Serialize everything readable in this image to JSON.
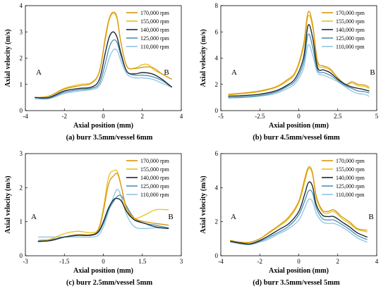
{
  "legend_labels": [
    "170,000 rpm",
    "155,000 rpm",
    "140,000 rpm",
    "125,000 rpm",
    "110,000 rpm"
  ],
  "colors": {
    "s170": "#d9960f",
    "s155": "#e8c21a",
    "s140": "#1b2b38",
    "s125": "#4e8fb4",
    "s110": "#8ec4e4"
  },
  "chart_data": [
    {
      "type": "line",
      "caption": "(a) burr 3.5mm/vessel 6mm",
      "xlabel": "Axial position (mm)",
      "ylabel": "Axial velocity (m/s)",
      "xlim": [
        -4,
        4
      ],
      "ylim": [
        0,
        4
      ],
      "xticks": [
        "-4",
        "-2",
        "0",
        "2",
        "4"
      ],
      "yticks": [
        "0",
        "1",
        "2",
        "3",
        "4"
      ],
      "annotations": {
        "left": "A",
        "right": "B"
      },
      "series": [
        {
          "name": "170,000 rpm",
          "x": [
            -3.5,
            -2.8,
            -2,
            -1.2,
            -0.6,
            -0.2,
            0.1,
            0.3,
            0.5,
            0.7,
            0.9,
            1.2,
            1.6,
            2.0,
            2.5,
            3.0,
            3.5
          ],
          "y": [
            0.5,
            0.55,
            0.82,
            0.95,
            1.05,
            1.5,
            2.8,
            3.5,
            3.75,
            3.55,
            2.6,
            1.7,
            1.6,
            1.65,
            1.65,
            1.4,
            1.2
          ]
        },
        {
          "name": "155,000 rpm",
          "x": [
            -3.5,
            -2.8,
            -2,
            -1.2,
            -0.6,
            -0.2,
            0.1,
            0.3,
            0.5,
            0.7,
            0.9,
            1.2,
            1.6,
            2.0,
            2.3,
            2.6,
            3.0,
            3.5
          ],
          "y": [
            0.5,
            0.55,
            0.85,
            1.0,
            1.08,
            1.5,
            2.7,
            3.45,
            3.7,
            3.5,
            2.6,
            1.7,
            1.62,
            1.75,
            1.75,
            1.55,
            1.4,
            1.2
          ]
        },
        {
          "name": "140,000 rpm",
          "x": [
            -3.5,
            -2.8,
            -2,
            -1.2,
            -0.6,
            -0.2,
            0.1,
            0.3,
            0.5,
            0.7,
            0.9,
            1.2,
            1.6,
            2.0,
            2.5,
            3.0,
            3.5
          ],
          "y": [
            0.5,
            0.5,
            0.75,
            0.85,
            0.9,
            1.2,
            2.2,
            2.8,
            3.0,
            2.8,
            2.2,
            1.5,
            1.4,
            1.45,
            1.4,
            1.2,
            0.9
          ]
        },
        {
          "name": "125,000 rpm",
          "x": [
            -3.5,
            -2.8,
            -2,
            -1.2,
            -0.6,
            -0.2,
            0.1,
            0.3,
            0.5,
            0.7,
            0.9,
            1.2,
            1.6,
            2.0,
            2.5,
            3.0,
            3.5
          ],
          "y": [
            0.5,
            0.48,
            0.7,
            0.8,
            0.85,
            1.05,
            1.8,
            2.4,
            2.68,
            2.6,
            2.1,
            1.5,
            1.35,
            1.35,
            1.3,
            1.15,
            0.9
          ]
        },
        {
          "name": "110,000 rpm",
          "x": [
            -3.5,
            -2.8,
            -2,
            -1.2,
            -0.6,
            -0.2,
            0.1,
            0.3,
            0.5,
            0.7,
            0.9,
            1.2,
            1.6,
            2.0,
            2.5,
            3.0,
            3.5
          ],
          "y": [
            0.45,
            0.45,
            0.65,
            0.75,
            0.8,
            0.95,
            1.5,
            2.0,
            2.3,
            2.3,
            1.9,
            1.4,
            1.25,
            1.25,
            1.2,
            1.05,
            0.9
          ]
        }
      ]
    },
    {
      "type": "line",
      "caption": "(b) burr 4.5mm/vessel 6mm",
      "xlabel": "Axial position (mm)",
      "ylabel": "Axial velocity (m/s)",
      "xlim": [
        -5,
        5
      ],
      "ylim": [
        0,
        8
      ],
      "xticks": [
        "-5",
        "-2.5",
        "0",
        "2.5",
        "5"
      ],
      "yticks": [
        "0",
        "2",
        "4",
        "6",
        "8"
      ],
      "annotations": {
        "left": "A",
        "right": "B"
      },
      "series": [
        {
          "name": "170,000 rpm",
          "x": [
            -4.5,
            -3.5,
            -2.5,
            -1.5,
            -0.8,
            -0.2,
            0.3,
            0.6,
            0.9,
            1.2,
            1.6,
            2.0,
            2.5,
            3.0,
            3.4,
            3.8,
            4.2,
            4.5
          ],
          "y": [
            1.25,
            1.35,
            1.5,
            1.8,
            2.3,
            3.0,
            5.0,
            7.5,
            6.5,
            3.8,
            3.4,
            3.2,
            2.5,
            2.0,
            2.2,
            2.0,
            1.95,
            1.8
          ]
        },
        {
          "name": "155,000 rpm",
          "x": [
            -4.5,
            -3.5,
            -2.5,
            -1.5,
            -0.8,
            -0.2,
            0.3,
            0.6,
            0.9,
            1.2,
            1.6,
            2.0,
            2.5,
            3.0,
            3.4,
            3.8,
            4.2,
            4.5
          ],
          "y": [
            1.2,
            1.3,
            1.45,
            1.75,
            2.2,
            2.9,
            4.8,
            7.2,
            6.3,
            3.6,
            3.3,
            3.1,
            2.5,
            2.0,
            2.1,
            1.9,
            1.85,
            1.7
          ]
        },
        {
          "name": "140,000 rpm",
          "x": [
            -4.5,
            -3.5,
            -2.5,
            -1.5,
            -0.8,
            -0.2,
            0.3,
            0.6,
            0.9,
            1.2,
            1.6,
            2.0,
            2.5,
            3.0,
            3.4,
            3.8,
            4.2,
            4.5
          ],
          "y": [
            1.1,
            1.15,
            1.25,
            1.5,
            1.9,
            2.5,
            4.0,
            6.5,
            5.5,
            3.3,
            3.1,
            2.9,
            2.4,
            2.0,
            1.8,
            1.7,
            1.6,
            1.5
          ]
        },
        {
          "name": "125,000 rpm",
          "x": [
            -4.5,
            -3.5,
            -2.5,
            -1.5,
            -0.8,
            -0.2,
            0.3,
            0.6,
            0.9,
            1.2,
            1.6,
            2.0,
            2.5,
            3.0,
            3.4,
            3.8,
            4.2,
            4.5
          ],
          "y": [
            1.0,
            1.05,
            1.15,
            1.4,
            1.8,
            2.3,
            3.6,
            5.8,
            4.8,
            3.1,
            2.9,
            2.7,
            2.3,
            1.9,
            1.7,
            1.5,
            1.45,
            1.35
          ]
        },
        {
          "name": "110,000 rpm",
          "x": [
            -4.5,
            -3.5,
            -2.5,
            -1.5,
            -0.8,
            -0.2,
            0.3,
            0.6,
            0.9,
            1.2,
            1.6,
            2.0,
            2.5,
            3.0,
            3.4,
            3.8,
            4.2,
            4.5
          ],
          "y": [
            0.95,
            1.0,
            1.1,
            1.3,
            1.65,
            2.1,
            3.2,
            5.0,
            4.2,
            2.9,
            2.7,
            2.5,
            2.2,
            1.8,
            1.5,
            1.3,
            1.25,
            1.1
          ]
        }
      ]
    },
    {
      "type": "line",
      "caption": "(c) burr 2.5mm/vessel 5mm",
      "xlabel": "Axial position (mm)",
      "ylabel": "Axial velocity (m/s)",
      "xlim": [
        -3,
        3
      ],
      "ylim": [
        0,
        3
      ],
      "xticks": [
        "-3",
        "-1.5",
        "0",
        "1.5",
        "3"
      ],
      "yticks": [
        "0",
        "1",
        "2",
        "3"
      ],
      "annotations": {
        "left": "A",
        "right": "B"
      },
      "series": [
        {
          "name": "170,000 rpm",
          "x": [
            -2.5,
            -2.0,
            -1.5,
            -1.0,
            -0.5,
            -0.2,
            0.0,
            0.2,
            0.4,
            0.55,
            0.7,
            0.9,
            1.2,
            1.6,
            2.0,
            2.5
          ],
          "y": [
            0.42,
            0.45,
            0.55,
            0.62,
            0.62,
            0.75,
            1.3,
            2.1,
            2.35,
            2.4,
            2.0,
            1.4,
            1.1,
            1.0,
            0.95,
            0.9
          ]
        },
        {
          "name": "155,000 rpm",
          "x": [
            -2.5,
            -2.0,
            -1.5,
            -1.0,
            -0.5,
            -0.2,
            0.0,
            0.2,
            0.4,
            0.55,
            0.7,
            0.9,
            1.2,
            1.6,
            2.0,
            2.5
          ],
          "y": [
            0.42,
            0.5,
            0.65,
            0.72,
            0.68,
            0.78,
            1.4,
            2.3,
            2.5,
            2.45,
            2.0,
            1.3,
            1.1,
            1.2,
            1.35,
            1.35
          ]
        },
        {
          "name": "140,000 rpm",
          "x": [
            -2.5,
            -2.0,
            -1.5,
            -1.0,
            -0.5,
            -0.2,
            0.0,
            0.2,
            0.4,
            0.55,
            0.7,
            0.9,
            1.2,
            1.6,
            2.0,
            2.5
          ],
          "y": [
            0.42,
            0.45,
            0.55,
            0.6,
            0.6,
            0.7,
            1.0,
            1.4,
            1.65,
            1.68,
            1.6,
            1.3,
            1.05,
            0.95,
            0.85,
            0.8
          ]
        },
        {
          "name": "125,000 rpm",
          "x": [
            -2.5,
            -2.0,
            -1.5,
            -1.0,
            -0.5,
            -0.2,
            0.0,
            0.2,
            0.4,
            0.55,
            0.7,
            0.9,
            1.2,
            1.6,
            2.0,
            2.5
          ],
          "y": [
            0.45,
            0.48,
            0.55,
            0.6,
            0.6,
            0.68,
            0.95,
            1.35,
            1.6,
            1.75,
            1.75,
            1.45,
            1.1,
            0.95,
            0.9,
            0.82
          ]
        },
        {
          "name": "110,000 rpm",
          "x": [
            -2.5,
            -2.0,
            -1.5,
            -1.0,
            -0.5,
            -0.2,
            0.0,
            0.2,
            0.4,
            0.55,
            0.7,
            0.9,
            1.2,
            1.6,
            2.0,
            2.5
          ],
          "y": [
            0.55,
            0.55,
            0.55,
            0.55,
            0.55,
            0.6,
            0.85,
            1.3,
            1.75,
            1.95,
            1.7,
            1.2,
            0.85,
            0.8,
            0.82,
            0.8
          ]
        }
      ]
    },
    {
      "type": "line",
      "caption": "(d) burr 3.5mm/vessel 5mm",
      "xlabel": "Axial position (mm)",
      "ylabel": "Axial velocity (m/s)",
      "xlim": [
        -4,
        4
      ],
      "ylim": [
        0,
        6
      ],
      "xticks": [
        "-4",
        "-2",
        "0",
        "2",
        "4"
      ],
      "yticks": [
        "0",
        "2",
        "4",
        "6"
      ],
      "annotations": {
        "left": "A",
        "right": "B"
      },
      "series": [
        {
          "name": "170,000 rpm",
          "x": [
            -3.5,
            -3.0,
            -2.5,
            -2.0,
            -1.5,
            -1.0,
            -0.5,
            0.0,
            0.3,
            0.5,
            0.7,
            0.9,
            1.2,
            1.5,
            1.8,
            2.2,
            2.6,
            3.0,
            3.5
          ],
          "y": [
            0.9,
            0.8,
            0.8,
            1.0,
            1.4,
            1.8,
            2.3,
            3.2,
            4.5,
            5.2,
            4.9,
            3.5,
            2.7,
            2.6,
            2.7,
            2.3,
            2.0,
            1.6,
            1.5
          ]
        },
        {
          "name": "155,000 rpm",
          "x": [
            -3.5,
            -3.0,
            -2.5,
            -2.0,
            -1.5,
            -1.0,
            -0.5,
            0.0,
            0.3,
            0.5,
            0.7,
            0.9,
            1.2,
            1.5,
            1.8,
            2.2,
            2.6,
            3.0,
            3.5
          ],
          "y": [
            0.9,
            0.78,
            0.78,
            1.0,
            1.35,
            1.75,
            2.2,
            3.1,
            4.3,
            5.1,
            4.8,
            3.4,
            2.6,
            2.5,
            2.6,
            2.2,
            1.9,
            1.55,
            1.4
          ]
        },
        {
          "name": "140,000 rpm",
          "x": [
            -3.5,
            -3.0,
            -2.5,
            -2.0,
            -1.5,
            -1.0,
            -0.5,
            0.0,
            0.3,
            0.5,
            0.7,
            0.9,
            1.2,
            1.5,
            1.8,
            2.2,
            2.6,
            3.0,
            3.5
          ],
          "y": [
            0.85,
            0.75,
            0.7,
            0.9,
            1.2,
            1.55,
            1.9,
            2.6,
            3.6,
            4.3,
            4.1,
            3.0,
            2.4,
            2.3,
            2.3,
            2.0,
            1.7,
            1.35,
            1.1
          ]
        },
        {
          "name": "125,000 rpm",
          "x": [
            -3.5,
            -3.0,
            -2.5,
            -2.0,
            -1.5,
            -1.0,
            -0.5,
            0.0,
            0.3,
            0.5,
            0.7,
            0.9,
            1.2,
            1.5,
            1.8,
            2.2,
            2.6,
            3.0,
            3.5
          ],
          "y": [
            0.85,
            0.72,
            0.68,
            0.85,
            1.1,
            1.4,
            1.75,
            2.4,
            3.2,
            3.8,
            3.7,
            2.8,
            2.2,
            2.1,
            2.1,
            1.85,
            1.55,
            1.2,
            0.95
          ]
        },
        {
          "name": "110,000 rpm",
          "x": [
            -3.5,
            -3.0,
            -2.5,
            -2.0,
            -1.5,
            -1.0,
            -0.5,
            0.0,
            0.3,
            0.5,
            0.7,
            0.9,
            1.2,
            1.5,
            1.8,
            2.2,
            2.6,
            3.0,
            3.5
          ],
          "y": [
            0.8,
            0.7,
            0.65,
            0.8,
            1.0,
            1.3,
            1.6,
            2.1,
            2.8,
            3.3,
            3.2,
            2.5,
            2.0,
            1.9,
            1.9,
            1.7,
            1.4,
            1.05,
            0.8
          ]
        }
      ]
    }
  ]
}
